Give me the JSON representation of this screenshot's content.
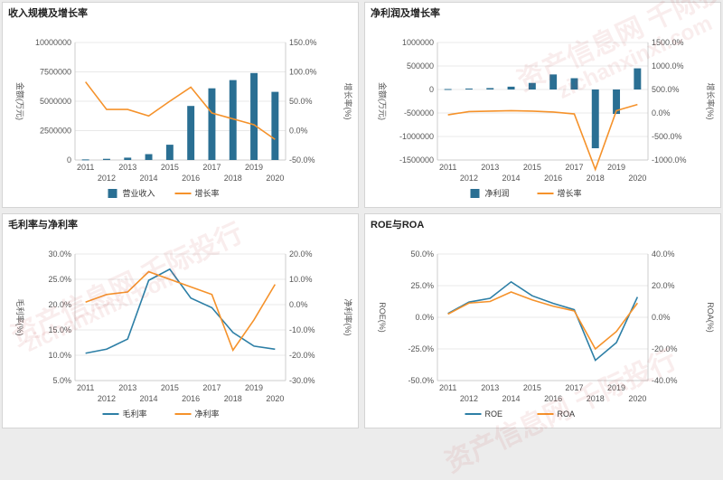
{
  "colors": {
    "bar": "#2a6f93",
    "line_orange": "#f5922b",
    "line_blue": "#2d7fa6",
    "grid": "#e8e8e8",
    "axis_text": "#555555"
  },
  "watermark": [
    "资产信息网 千际投行",
    "zichanxinxi.com"
  ],
  "chart_data": [
    {
      "type": "bar",
      "title": "收入规模及增长率",
      "ylabel": "金额(万元)",
      "y2label": "增长率(%)",
      "categories": [
        "2011",
        "2012",
        "2013",
        "2014",
        "2015",
        "2016",
        "2017",
        "2018",
        "2019",
        "2020"
      ],
      "ylim": [
        0,
        10000000
      ],
      "yticks": [
        "0",
        "2500000",
        "5000000",
        "7500000",
        "10000000"
      ],
      "y2lim": [
        -50,
        150
      ],
      "y2ticks": [
        "-50.0%",
        "0.0%",
        "50.0%",
        "100.0%",
        "150.0%"
      ],
      "series": [
        {
          "name": "营业收入",
          "kind": "bar",
          "axis": "left",
          "values": [
            50000,
            100000,
            200000,
            500000,
            1300000,
            4600000,
            6100000,
            6800000,
            7400000,
            5800000
          ]
        },
        {
          "name": "增长率",
          "kind": "line",
          "axis": "right",
          "values": [
            83,
            36,
            36,
            25,
            50,
            74,
            30,
            20,
            10,
            -15
          ]
        }
      ],
      "legend_position": "bottom"
    },
    {
      "type": "bar",
      "title": "净利润及增长率",
      "ylabel": "金额(万元)",
      "y2label": "增长率(%)",
      "categories": [
        "2011",
        "2012",
        "2013",
        "2014",
        "2015",
        "2016",
        "2017",
        "2018",
        "2019",
        "2020"
      ],
      "ylim": [
        -1500000,
        1000000
      ],
      "yticks": [
        "-1500000",
        "-1000000",
        "-500000",
        "0",
        "500000",
        "1000000"
      ],
      "y2lim": [
        -1000,
        1500
      ],
      "y2ticks": [
        "-1000.0%",
        "-500.0%",
        "0.0%",
        "500.0%",
        "1000.0%",
        "1500.0%"
      ],
      "series": [
        {
          "name": "净利润",
          "kind": "bar",
          "axis": "left",
          "values": [
            10000,
            20000,
            30000,
            60000,
            140000,
            320000,
            240000,
            -1250000,
            -520000,
            450000
          ]
        },
        {
          "name": "增长率",
          "kind": "line",
          "axis": "right",
          "values": [
            -40,
            30,
            40,
            50,
            40,
            20,
            -20,
            -1200,
            50,
            180
          ]
        }
      ],
      "legend_position": "bottom"
    },
    {
      "type": "line",
      "title": "毛利率与净利率",
      "ylabel": "毛利率(%)",
      "y2label": "净利率(%)",
      "categories": [
        "2011",
        "2012",
        "2013",
        "2014",
        "2015",
        "2016",
        "2017",
        "2018",
        "2019",
        "2020"
      ],
      "ylim": [
        5,
        30
      ],
      "yticks": [
        "5.0%",
        "10.0%",
        "15.0%",
        "20.0%",
        "25.0%",
        "30.0%"
      ],
      "y2lim": [
        -30,
        20
      ],
      "y2ticks": [
        "-30.0%",
        "-20.0%",
        "-10.0%",
        "0.0%",
        "10.0%",
        "20.0%"
      ],
      "series": [
        {
          "name": "毛利率",
          "kind": "line",
          "axis": "left",
          "values": [
            10.4,
            11.2,
            13.2,
            24.8,
            27.0,
            21.3,
            19.4,
            14.5,
            11.8,
            11.2
          ]
        },
        {
          "name": "净利率",
          "kind": "line",
          "axis": "right",
          "values": [
            1,
            4,
            5,
            13,
            10,
            7,
            4,
            -18,
            -6,
            8
          ]
        }
      ],
      "legend_position": "bottom"
    },
    {
      "type": "line",
      "title": "ROE与ROA",
      "ylabel": "ROE(%)",
      "y2label": "ROA(%)",
      "categories": [
        "2011",
        "2012",
        "2013",
        "2014",
        "2015",
        "2016",
        "2017",
        "2018",
        "2019",
        "2020"
      ],
      "ylim": [
        -50,
        50
      ],
      "yticks": [
        "-50.0%",
        "-25.0%",
        "0.0%",
        "25.0%",
        "50.0%"
      ],
      "y2lim": [
        -40,
        40
      ],
      "y2ticks": [
        "-40.0%",
        "-20.0%",
        "0.0%",
        "20.0%",
        "40.0%"
      ],
      "series": [
        {
          "name": "ROE",
          "kind": "line",
          "axis": "left",
          "values": [
            3,
            12,
            15,
            28,
            17,
            11,
            6,
            -34,
            -20,
            16
          ]
        },
        {
          "name": "ROA",
          "kind": "line",
          "axis": "right",
          "values": [
            2,
            9,
            10,
            16,
            11,
            7,
            4,
            -20,
            -9,
            9
          ]
        }
      ],
      "legend_position": "bottom"
    }
  ]
}
